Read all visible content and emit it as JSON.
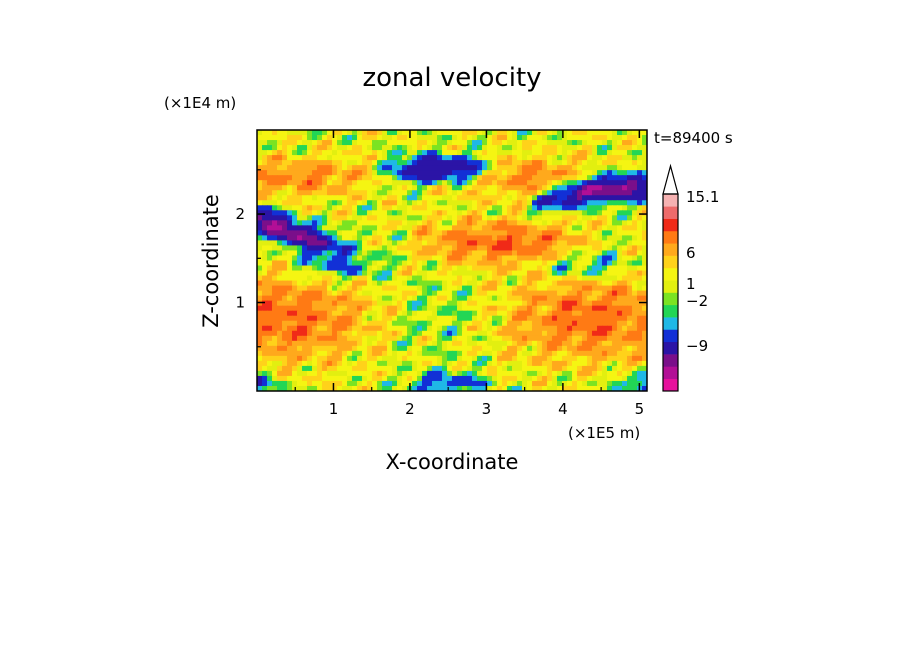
{
  "chart_data": {
    "type": "heatmap",
    "title": "zonal velocity",
    "xlabel": "X-coordinate",
    "ylabel": "Z-coordinate",
    "x_unit": "(×1E5 m)",
    "y_unit": "(×1E4 m)",
    "time_label": "t=89400 s",
    "xlim": [
      0,
      5.1
    ],
    "ylim": [
      0,
      2.95
    ],
    "x_ticks": [
      "1",
      "2",
      "3",
      "4",
      "5"
    ],
    "y_ticks": [
      "1",
      "2"
    ],
    "colorbar": {
      "labels": [
        "15.1",
        "6",
        "1",
        "-2",
        "-9"
      ],
      "levels": [
        {
          "value": -12,
          "color": "#e6109c"
        },
        {
          "value": -10,
          "color": "#b20f96"
        },
        {
          "value": -8,
          "color": "#7a0f8a"
        },
        {
          "value": -6,
          "color": "#2b14a6"
        },
        {
          "value": -3,
          "color": "#1230d6"
        },
        {
          "value": -1.5,
          "color": "#1fb8e6"
        },
        {
          "value": -0.5,
          "color": "#22d655"
        },
        {
          "value": 0.3,
          "color": "#7be322"
        },
        {
          "value": 0.8,
          "color": "#e2ef10"
        },
        {
          "value": 1.5,
          "color": "#f5f512"
        },
        {
          "value": 2.5,
          "color": "#ffd21a"
        },
        {
          "value": 3.5,
          "color": "#ffa91c"
        },
        {
          "value": 5,
          "color": "#ff7a14"
        },
        {
          "value": 7,
          "color": "#f02a18"
        },
        {
          "value": 10,
          "color": "#ee6b6b"
        },
        {
          "value": 13,
          "color": "#f6b2b2"
        }
      ]
    }
  }
}
